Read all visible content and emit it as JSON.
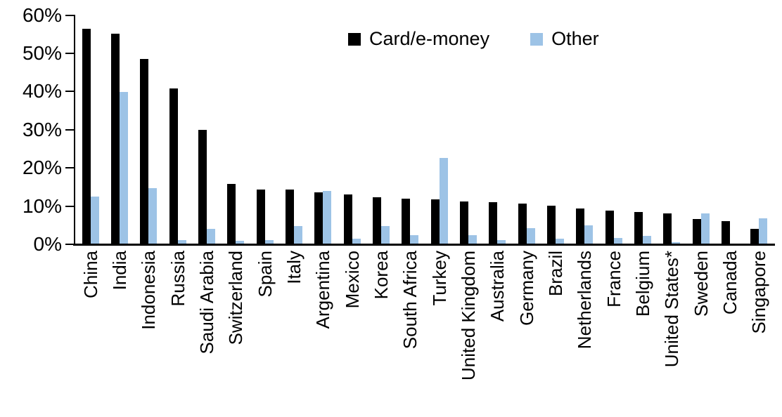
{
  "legend": {
    "items": [
      {
        "label": "Card/e-money",
        "color": "#000000"
      },
      {
        "label": "Other",
        "color": "#9DC3E6"
      }
    ]
  },
  "chart_data": {
    "type": "bar",
    "title": "",
    "xlabel": "",
    "ylabel": "",
    "ylim": [
      0,
      60
    ],
    "grid": false,
    "legend_position": "top-center",
    "yticks": [
      "0%",
      "10%",
      "20%",
      "30%",
      "40%",
      "50%",
      "60%"
    ],
    "categories": [
      "China",
      "India",
      "Indonesia",
      "Russia",
      "Saudi Arabia",
      "Switzerland",
      "Spain",
      "Italy",
      "Argentina",
      "Mexico",
      "Korea",
      "South Africa",
      "Turkey",
      "United Kingdom",
      "Australia",
      "Germany",
      "Brazil",
      "Netherlands",
      "France",
      "Belgium",
      "United States*",
      "Sweden",
      "Canada",
      "Singapore"
    ],
    "series": [
      {
        "name": "Card/e-money",
        "color": "#000000",
        "values": [
          56.3,
          55.1,
          48.4,
          40.6,
          29.8,
          15.7,
          14.2,
          14.1,
          13.4,
          12.9,
          12.2,
          11.7,
          11.6,
          11.0,
          10.8,
          10.5,
          10.0,
          9.2,
          8.7,
          8.2,
          7.9,
          6.5,
          5.9,
          3.9
        ]
      },
      {
        "name": "Other",
        "color": "#9DC3E6",
        "values": [
          12.3,
          39.8,
          14.6,
          1.0,
          3.9,
          0.8,
          1.0,
          4.6,
          13.8,
          1.3,
          4.6,
          2.3,
          22.4,
          2.3,
          1.0,
          4.0,
          1.2,
          4.8,
          1.5,
          2.0,
          0.3,
          8.0,
          0,
          6.6
        ]
      }
    ]
  }
}
